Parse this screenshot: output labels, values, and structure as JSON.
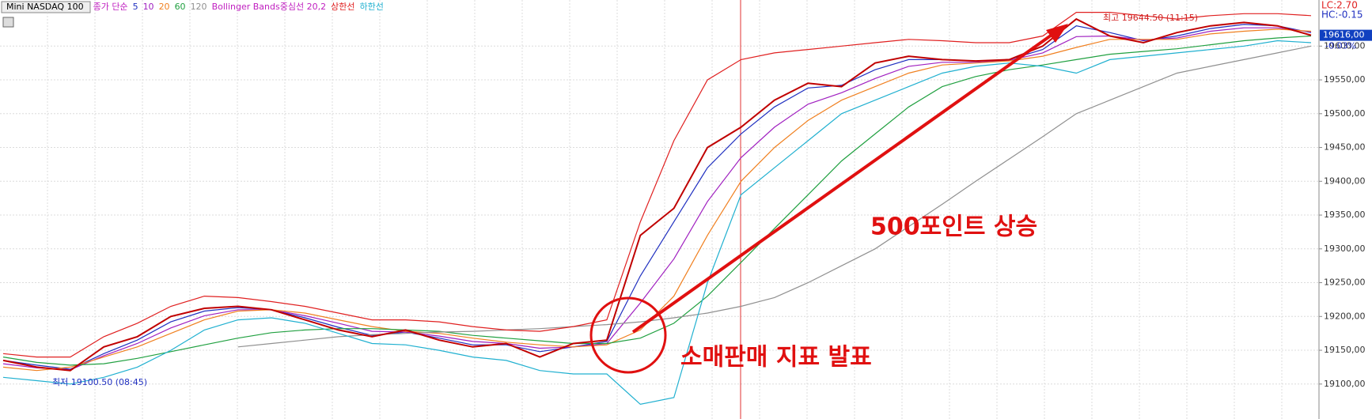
{
  "chart_data": {
    "type": "line",
    "title": "Mini NASDAQ 100",
    "legend_prefix": "종가 단순",
    "bollinger_label": "Bollinger Bands중심선 20,2",
    "categories": [
      null,
      null,
      null,
      null,
      null,
      null,
      null,
      null,
      null,
      null,
      null,
      null,
      null,
      null,
      null,
      null,
      null,
      null,
      null,
      null,
      null,
      null,
      null,
      null,
      null,
      null,
      null,
      null,
      null,
      null,
      null,
      null,
      null,
      null,
      null,
      null,
      null,
      null,
      null,
      null
    ],
    "series": [
      {
        "name": "5",
        "color": "#2030c0",
        "values": [
          19135,
          19128,
          19122,
          19145,
          19165,
          19192,
          19208,
          19213,
          19210,
          19198,
          19184,
          19172,
          19177,
          19168,
          19158,
          19158,
          19148,
          19155,
          19163,
          19260,
          19340,
          19420,
          19470,
          19510,
          19538,
          19542,
          19565,
          19580,
          19580,
          19578,
          19580,
          19595,
          19630,
          19620,
          19608,
          19615,
          19626,
          19632,
          19630,
          19620
        ]
      },
      {
        "name": "10",
        "color": "#a020c0",
        "values": [
          19130,
          19124,
          19121,
          19142,
          19160,
          19183,
          19201,
          19210,
          19210,
          19201,
          19190,
          19178,
          19177,
          19171,
          19163,
          19160,
          19153,
          19155,
          19160,
          19220,
          19285,
          19370,
          19435,
          19480,
          19514,
          19531,
          19552,
          19570,
          19576,
          19576,
          19579,
          19590,
          19614,
          19615,
          19609,
          19612,
          19622,
          19627,
          19627,
          19621
        ]
      },
      {
        "name": "20",
        "color": "#f08020",
        "values": [
          19125,
          19120,
          19125,
          19140,
          19155,
          19175,
          19195,
          19208,
          19210,
          19205,
          19195,
          19185,
          19178,
          19175,
          19168,
          19162,
          19158,
          19155,
          19158,
          19180,
          19230,
          19320,
          19400,
          19450,
          19490,
          19520,
          19540,
          19560,
          19572,
          19575,
          19578,
          19585,
          19598,
          19610,
          19610,
          19610,
          19618,
          19622,
          19625,
          19622
        ]
      },
      {
        "name": "60",
        "color": "#20a040",
        "values": [
          19140,
          19132,
          19128,
          19130,
          19138,
          19148,
          19158,
          19168,
          19176,
          19180,
          19182,
          19182,
          19180,
          19178,
          19172,
          19168,
          19164,
          19160,
          19160,
          19168,
          19190,
          19230,
          19280,
          19330,
          19380,
          19430,
          19470,
          19510,
          19540,
          19555,
          19565,
          19572,
          19580,
          19588,
          19592,
          19596,
          19602,
          19608,
          19612,
          19615
        ]
      },
      {
        "name": "120",
        "color": "#909090",
        "values": [
          null,
          null,
          null,
          null,
          null,
          null,
          null,
          19155,
          19160,
          19165,
          19170,
          19173,
          19175,
          19177,
          19178,
          19180,
          19182,
          19185,
          19188,
          19192,
          19198,
          19205,
          19215,
          19228,
          19250,
          19275,
          19300,
          19333,
          19366,
          19400,
          19433,
          19466,
          19500,
          19520,
          19540,
          19560,
          19570,
          19580,
          19590,
          19600
        ]
      },
      {
        "name": "상한선",
        "color": "#e02020",
        "values": [
          19145,
          19140,
          19140,
          19170,
          19190,
          19215,
          19230,
          19228,
          19222,
          19215,
          19205,
          19195,
          19195,
          19192,
          19185,
          19180,
          19178,
          19185,
          19195,
          19340,
          19460,
          19550,
          19580,
          19590,
          19595,
          19600,
          19605,
          19610,
          19608,
          19605,
          19605,
          19615,
          19650,
          19650,
          19645,
          19640,
          19645,
          19648,
          19648,
          19645
        ]
      },
      {
        "name": "하한선",
        "color": "#20b0d0",
        "values": [
          19110,
          19105,
          19100,
          19110,
          19125,
          19150,
          19180,
          19195,
          19198,
          19190,
          19175,
          19160,
          19158,
          19150,
          19140,
          19135,
          19120,
          19115,
          19115,
          19070,
          19080,
          19250,
          19380,
          19420,
          19460,
          19500,
          19520,
          19540,
          19560,
          19570,
          19575,
          19570,
          19560,
          19580,
          19585,
          19590,
          19595,
          19600,
          19608,
          19605
        ]
      },
      {
        "name": "Mini NASDAQ 100",
        "color": "#c00000",
        "values": [
          19135,
          19125,
          19120,
          19155,
          19170,
          19200,
          19212,
          19215,
          19210,
          19195,
          19180,
          19170,
          19180,
          19165,
          19155,
          19160,
          19140,
          19160,
          19165,
          19320,
          19360,
          19450,
          19480,
          19520,
          19545,
          19540,
          19575,
          19585,
          19580,
          19578,
          19580,
          19600,
          19640,
          19615,
          19605,
          19620,
          19630,
          19635,
          19630,
          19616
        ]
      }
    ],
    "ylim": [
      19060,
      19660
    ],
    "yticks": [
      {
        "value": 19100,
        "label": "19100,00"
      },
      {
        "value": 19150,
        "label": "19150,00"
      },
      {
        "value": 19200,
        "label": "19200,00"
      },
      {
        "value": 19250,
        "label": "19250,00"
      },
      {
        "value": 19300,
        "label": "19300,00"
      },
      {
        "value": 19350,
        "label": "19350,00"
      },
      {
        "value": 19400,
        "label": "19400,00"
      },
      {
        "value": 19450,
        "label": "19450,00"
      },
      {
        "value": 19500,
        "label": "19500,00"
      },
      {
        "value": 19550,
        "label": "19550,00"
      },
      {
        "value": 19600,
        "label": "19600,00"
      }
    ],
    "grid": true,
    "last_price": {
      "value": 19616,
      "label": "19616,00"
    },
    "change_label": "-0.03%",
    "lc_label": "LC:2.70",
    "hc_label": "HC:-0.15",
    "annotations": {
      "low": "최저 19100.50 (08:45)",
      "high": "최고 19644.50 (11:15)",
      "rise": "500포인트 상승",
      "event": "소매판매 지표 발표"
    }
  }
}
